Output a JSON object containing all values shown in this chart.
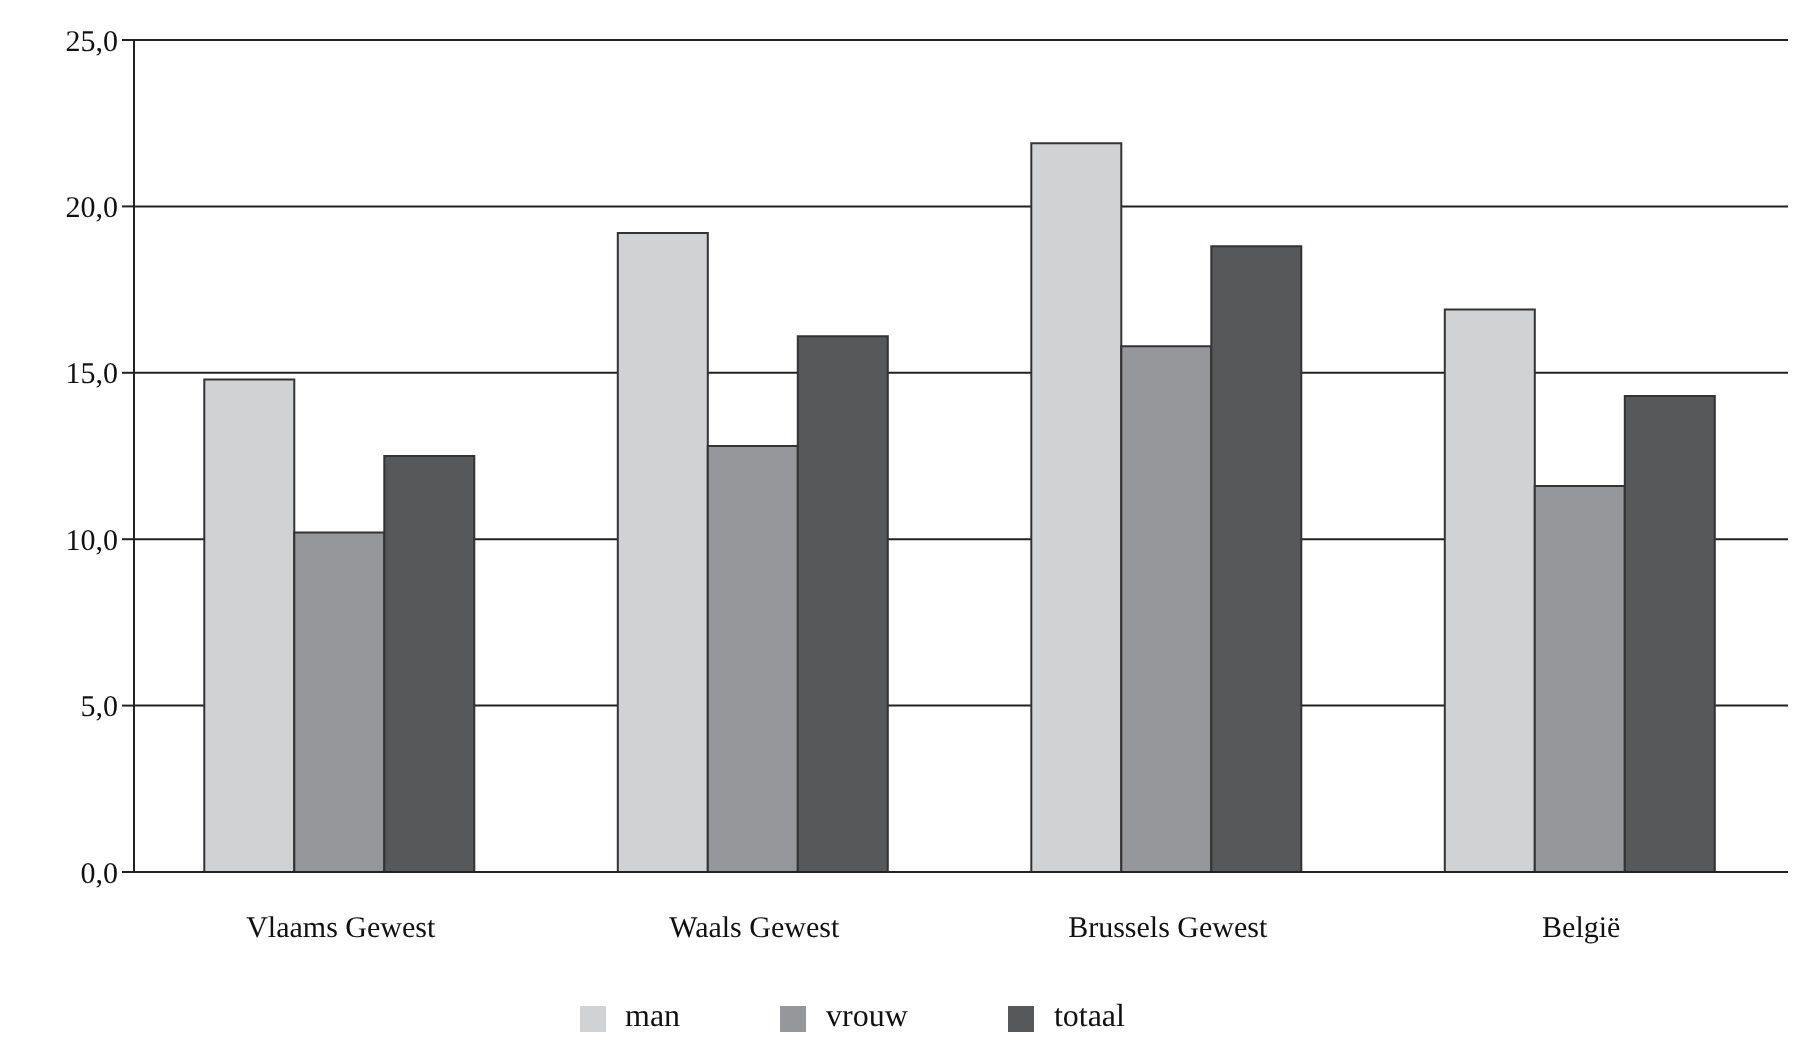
{
  "chart_data": {
    "type": "bar",
    "categories": [
      "Vlaams Gewest",
      "Waals Gewest",
      "Brussels Gewest",
      "België"
    ],
    "series": [
      {
        "name": "man",
        "color": "#d1d2d4",
        "values": [
          14.8,
          19.2,
          21.9,
          16.9
        ]
      },
      {
        "name": "vrouw",
        "color": "#96979b",
        "values": [
          10.2,
          12.8,
          15.8,
          11.6
        ]
      },
      {
        "name": "totaal",
        "color": "#56585a",
        "values": [
          12.5,
          16.1,
          18.8,
          14.3
        ]
      }
    ],
    "ylim": [
      0,
      25
    ],
    "yticks": [
      {
        "value": 0,
        "label": "0,0"
      },
      {
        "value": 5,
        "label": "5,0"
      },
      {
        "value": 10,
        "label": "10,0"
      },
      {
        "value": 15,
        "label": "15,0"
      },
      {
        "value": 20,
        "label": "20,0"
      },
      {
        "value": 25,
        "label": "25,0"
      }
    ],
    "grid": "y",
    "legend": "bottom"
  }
}
